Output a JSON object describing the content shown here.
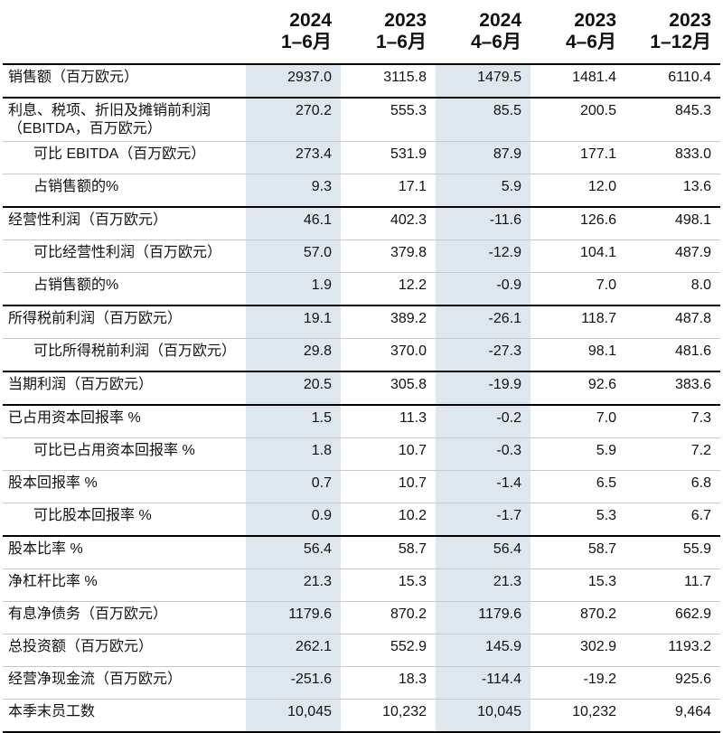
{
  "table": {
    "columns": [
      {
        "year": "2024",
        "period": "1–6月",
        "shaded": true
      },
      {
        "year": "2023",
        "period": "1–6月",
        "shaded": false
      },
      {
        "year": "2024",
        "period": "4–6月",
        "shaded": true
      },
      {
        "year": "2023",
        "period": "4–6月",
        "shaded": false
      },
      {
        "year": "2023",
        "period": "1–12月",
        "shaded": false
      }
    ],
    "groups": [
      [
        {
          "label": "销售额（百万欧元）",
          "values": [
            "2937.0",
            "3115.8",
            "1479.5",
            "1481.4",
            "6110.4"
          ]
        }
      ],
      [
        {
          "label": "利息、税项、折旧及摊销前利润（EBITDA，百万欧元）",
          "values": [
            "270.2",
            "555.3",
            "85.5",
            "200.5",
            "845.3"
          ]
        },
        {
          "label": "可比 EBITDA（百万欧元）",
          "indent": true,
          "values": [
            "273.4",
            "531.9",
            "87.9",
            "177.1",
            "833.0"
          ]
        },
        {
          "label": "占销售额的%",
          "indent": true,
          "values": [
            "9.3",
            "17.1",
            "5.9",
            "12.0",
            "13.6"
          ]
        }
      ],
      [
        {
          "label": "经营性利润（百万欧元）",
          "values": [
            "46.1",
            "402.3",
            "-11.6",
            "126.6",
            "498.1"
          ]
        },
        {
          "label": "可比经营性利润（百万欧元）",
          "indent": true,
          "values": [
            "57.0",
            "379.8",
            "-12.9",
            "104.1",
            "487.9"
          ]
        },
        {
          "label": "占销售额的%",
          "indent": true,
          "values": [
            "1.9",
            "12.2",
            "-0.9",
            "7.0",
            "8.0"
          ]
        }
      ],
      [
        {
          "label": "所得税前利润（百万欧元）",
          "values": [
            "19.1",
            "389.2",
            "-26.1",
            "118.7",
            "487.8"
          ]
        },
        {
          "label": "可比所得税前利润（百万欧元）",
          "indent": true,
          "values": [
            "29.8",
            "370.0",
            "-27.3",
            "98.1",
            "481.6"
          ]
        }
      ],
      [
        {
          "label": "当期利润（百万欧元）",
          "values": [
            "20.5",
            "305.8",
            "-19.9",
            "92.6",
            "383.6"
          ]
        }
      ],
      [
        {
          "label": "已占用资本回报率 %",
          "values": [
            "1.5",
            "11.3",
            "-0.2",
            "7.0",
            "7.3"
          ]
        },
        {
          "label": "可比已占用资本回报率 %",
          "indent": true,
          "values": [
            "1.8",
            "10.7",
            "-0.3",
            "5.9",
            "7.2"
          ]
        },
        {
          "label": "股本回报率 %",
          "values": [
            "0.7",
            "10.7",
            "-1.4",
            "6.5",
            "6.8"
          ]
        },
        {
          "label": "可比股本回报率 %",
          "indent": true,
          "values": [
            "0.9",
            "10.2",
            "-1.7",
            "5.3",
            "6.7"
          ]
        }
      ],
      [
        {
          "label": "股本比率 %",
          "values": [
            "56.4",
            "58.7",
            "56.4",
            "58.7",
            "55.9"
          ]
        },
        {
          "label": "净杠杆比率 %",
          "values": [
            "21.3",
            "15.3",
            "21.3",
            "15.3",
            "11.7"
          ]
        },
        {
          "label": "有息净债务（百万欧元）",
          "values": [
            "1179.6",
            "870.2",
            "1179.6",
            "870.2",
            "662.9"
          ]
        },
        {
          "label": "总投资额（百万欧元）",
          "values": [
            "262.1",
            "552.9",
            "145.9",
            "302.9",
            "1193.2"
          ]
        },
        {
          "label": "经营净现金流（百万欧元）",
          "values": [
            "-251.6",
            "18.3",
            "-114.4",
            "-19.2",
            "925.6"
          ]
        },
        {
          "label": "本季末员工数",
          "values": [
            "10,045",
            "10,232",
            "10,045",
            "10,232",
            "9,464"
          ]
        }
      ]
    ]
  }
}
